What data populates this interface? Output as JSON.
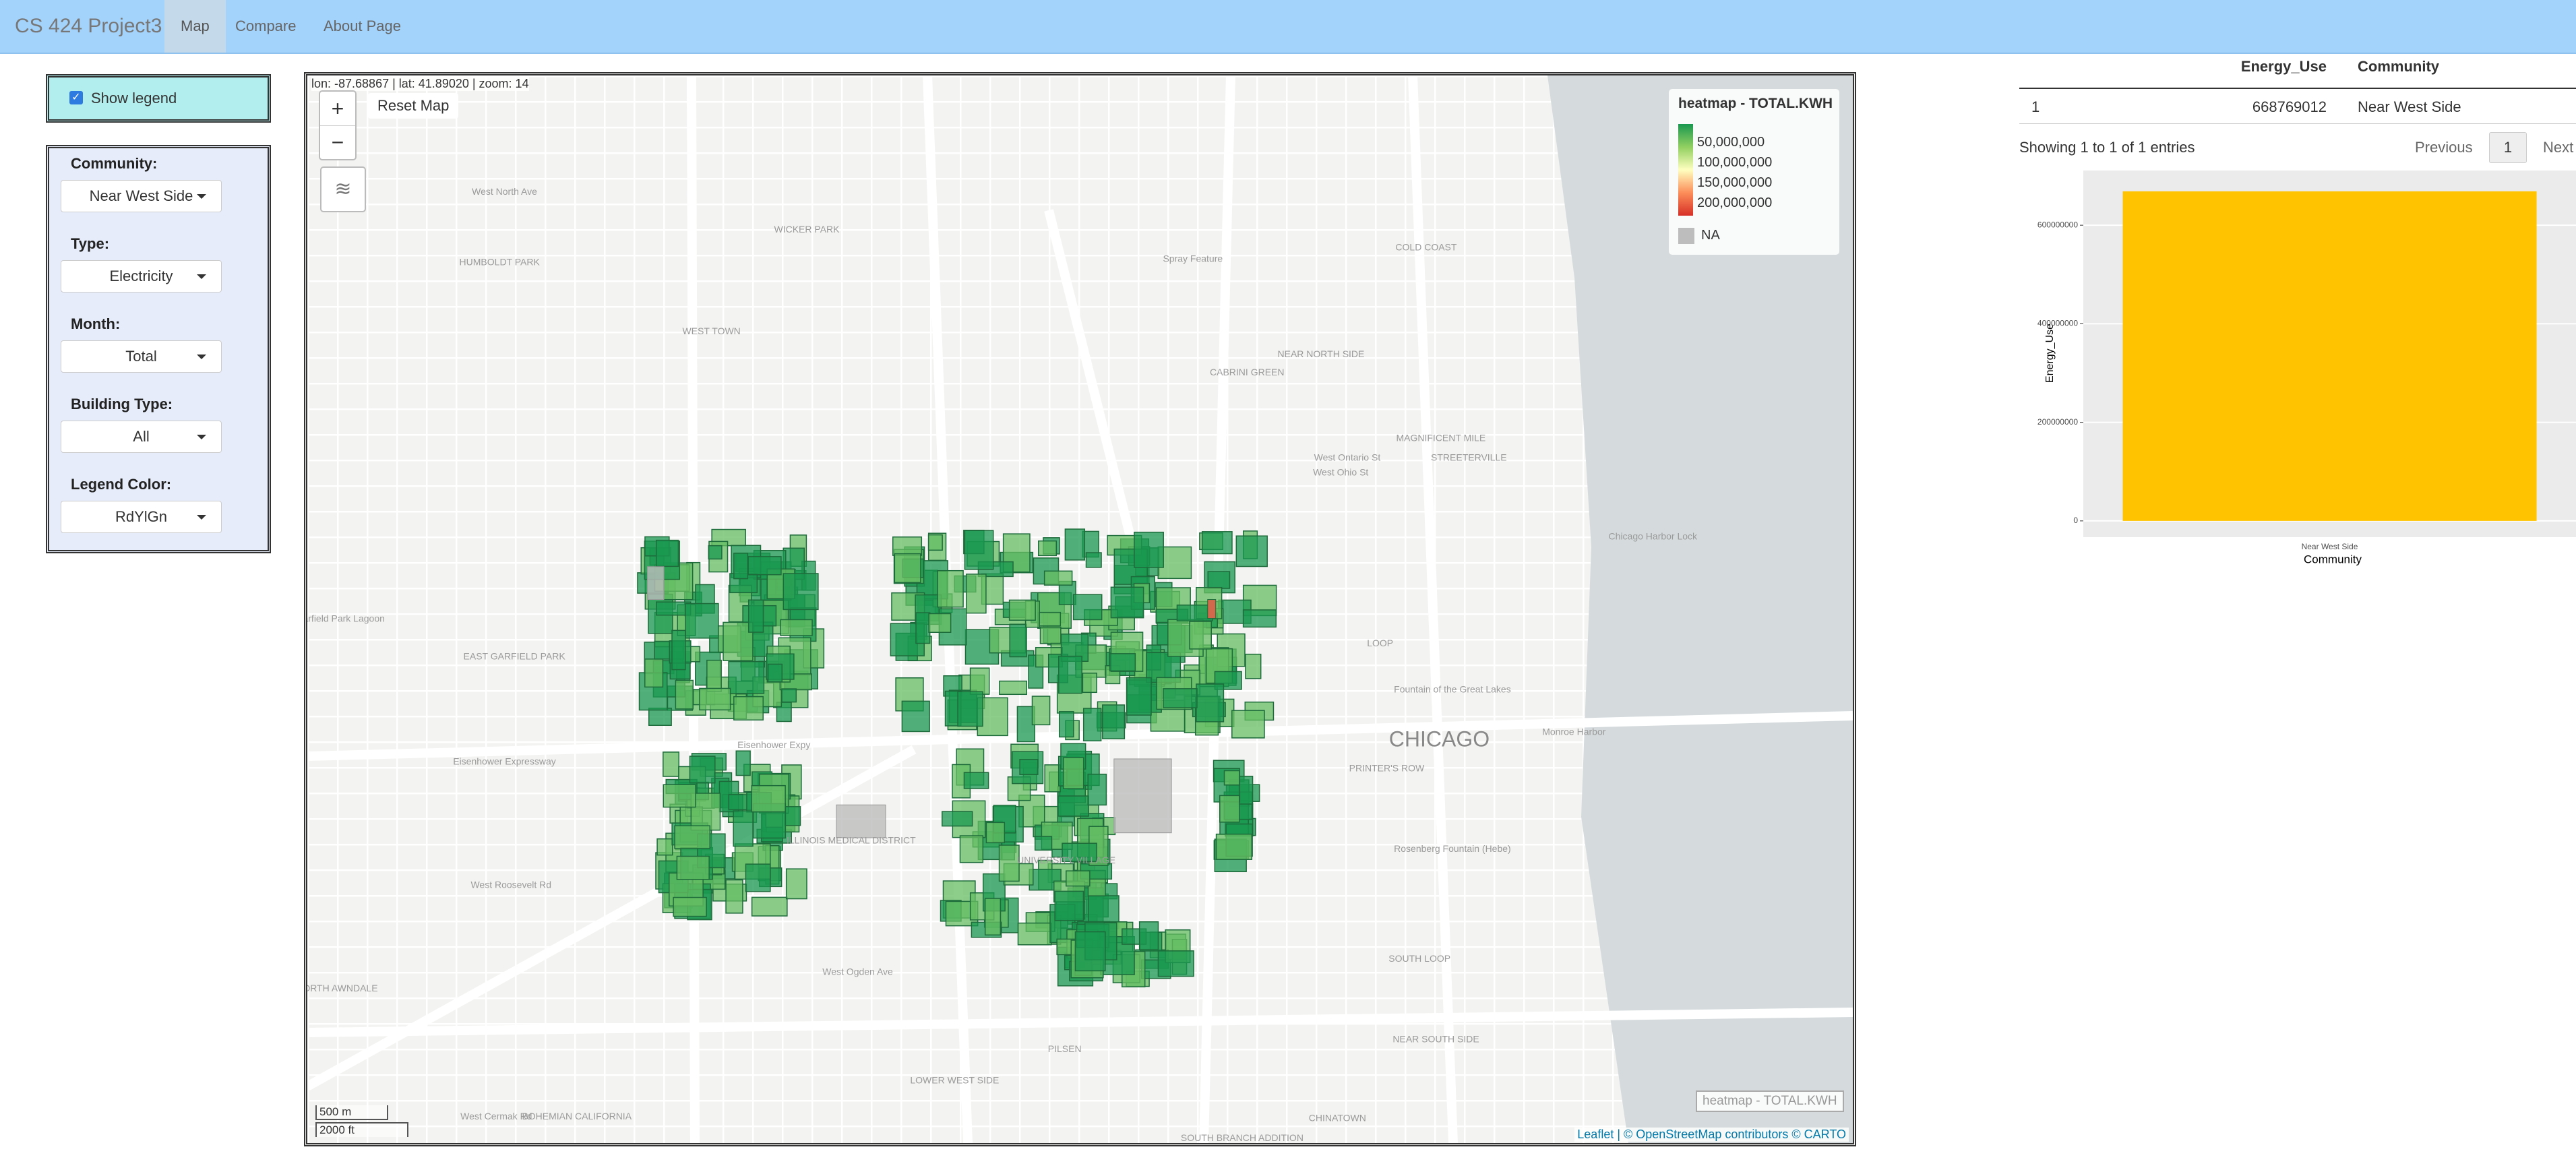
{
  "navbar": {
    "brand": "CS 424 Project3",
    "tabs": [
      "Map",
      "Compare",
      "About Page"
    ]
  },
  "sidebar": {
    "legend_checkbox": "Show legend",
    "controls": [
      {
        "label": "Community:",
        "value": "Near West Side"
      },
      {
        "label": "Type:",
        "value": "Electricity"
      },
      {
        "label": "Month:",
        "value": "Total"
      },
      {
        "label": "Building Type:",
        "value": "All"
      },
      {
        "label": "Legend Color:",
        "value": "RdYlGn"
      }
    ]
  },
  "map": {
    "coords": "lon: -87.68867 | lat: 41.89020 | zoom: 14",
    "zoom_in": "+",
    "zoom_out": "−",
    "reset": "Reset Map",
    "legend": {
      "title": "heatmap - TOTAL.KWH",
      "labels": [
        "50,000,000",
        "100,000,000",
        "150,000,000",
        "200,000,000"
      ],
      "na": "NA"
    },
    "scale": [
      "500 m",
      "2000 ft"
    ],
    "watermark": "heatmap - TOTAL.KWH",
    "attribution": "Leaflet | © OpenStreetMap contributors © CARTO",
    "places": [
      "WEST TOWN",
      "HUMBOLDT PARK",
      "West North Ave",
      "WICKER PARK",
      "NEAR NORTH SIDE",
      "CABRINI GREEN",
      "COLD COAST",
      "MAGNIFICENT MILE",
      "STREETERVILLE",
      "LOOP",
      "CHICAGO",
      "PRINTER'S ROW",
      "SOUTH LOOP",
      "NEAR SOUTH SIDE",
      "PILSEN",
      "LOWER WEST SIDE",
      "CHINATOWN",
      "EAST GARFIELD PARK",
      "ILLINOIS MEDICAL DISTRICT",
      "UNIVERSITY VILLAGE",
      "Eisenhower Expressway",
      "Eisenhower Expy",
      "West Roosevelt Rd",
      "West Ogden Ave",
      "Chicago Harbor Lock",
      "Fountain of the Great Lakes",
      "Rosenberg Fountain (Hebe)",
      "SOUTH BRANCH ADDITION",
      "BOHEMIAN CALIFORNIA",
      "NORTH AWNDALE",
      "West Ontario St",
      "West Ohio St",
      "Spray Feature",
      "Garfield Park Lagoon",
      "Monroe Harbor",
      "West Cermak Rd"
    ]
  },
  "table": {
    "headers": [
      "Energy_Use",
      "Community"
    ],
    "rows": [
      [
        "1",
        668769012,
        "Near West Side"
      ]
    ],
    "info": "Showing 1 to 1 of 1 entries",
    "pagination": [
      "Previous",
      "1",
      "Next"
    ]
  },
  "chart_data": {
    "type": "bar",
    "x_label": "Community",
    "y_label": "Energy_Use",
    "categories": [
      "Near West Side"
    ],
    "values": [
      668769012
    ],
    "color": "#ffc300",
    "ylim": [
      -33000000,
      711000000
    ],
    "yticks": [
      0,
      200000000,
      400000000,
      600000000
    ],
    "grid": true
  }
}
